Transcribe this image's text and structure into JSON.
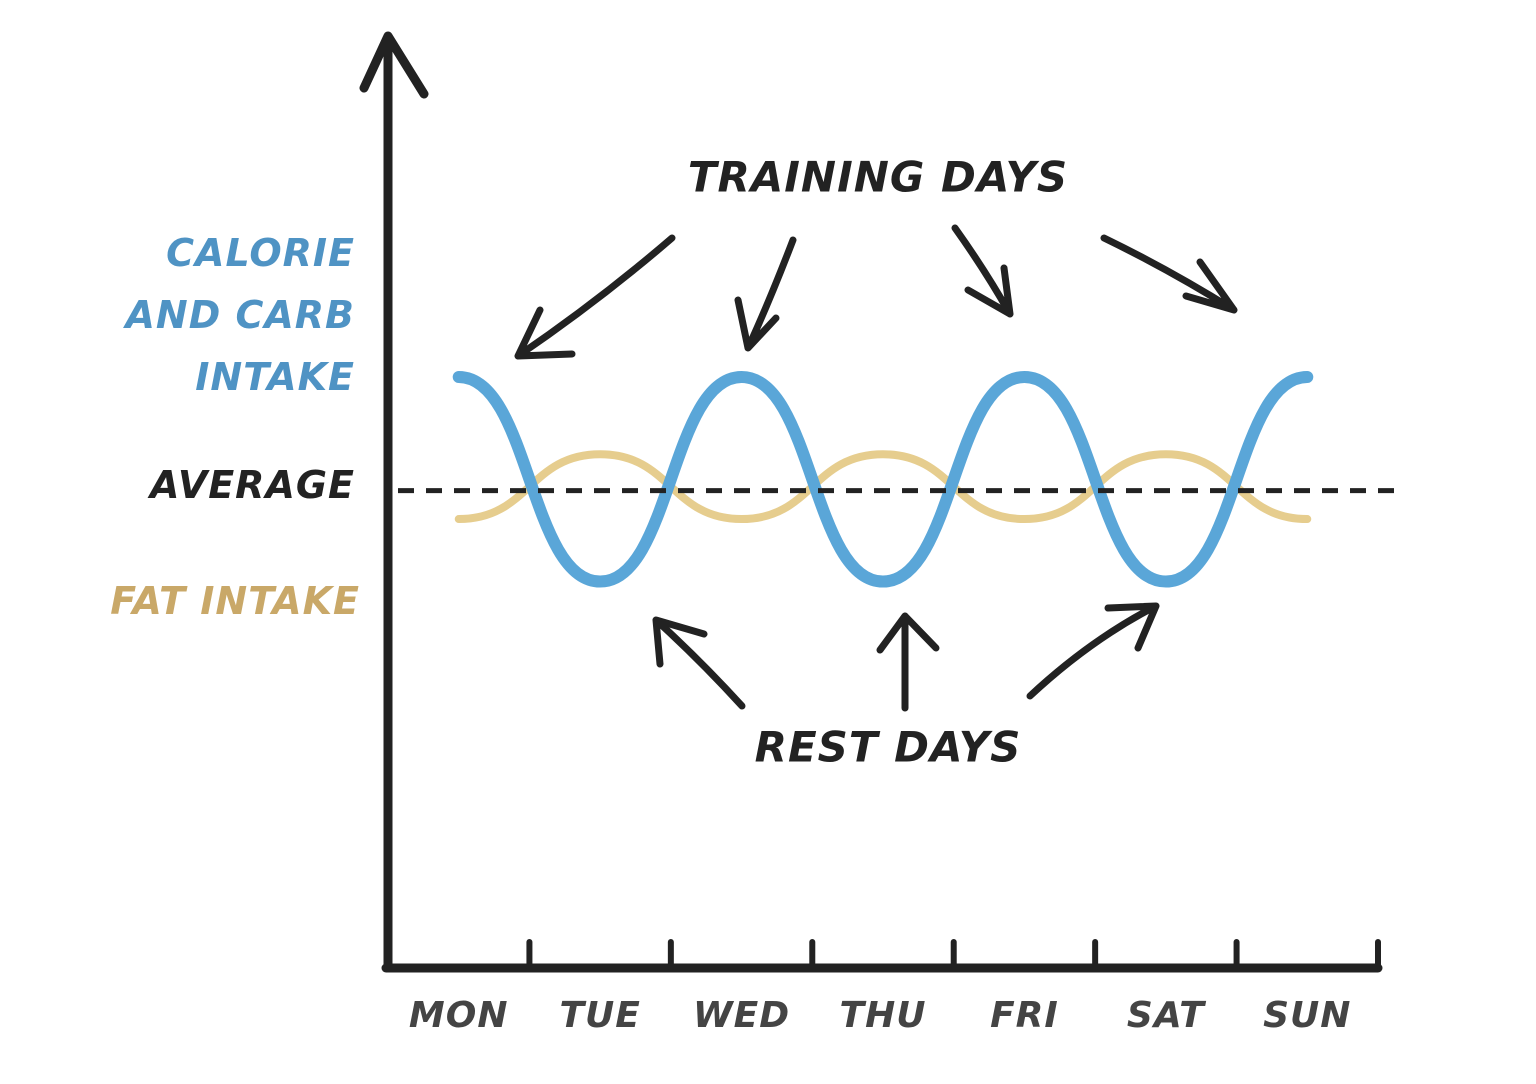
{
  "chart_data": {
    "type": "line",
    "categories": [
      "MON",
      "TUE",
      "WED",
      "THU",
      "FRI",
      "SAT",
      "SUN"
    ],
    "series": [
      {
        "name": "CALORIE AND CARB INTAKE",
        "color": "#5aa6d8",
        "label_color": "#4f93c4",
        "values": [
          1,
          -0.8,
          1,
          -0.8,
          1,
          -0.8,
          1
        ]
      },
      {
        "name": "FAT INTAKE",
        "color": "#e6cd8e",
        "label_color": "#c9a868",
        "values": [
          -0.25,
          0.32,
          -0.25,
          0.32,
          -0.25,
          0.32,
          -0.25
        ]
      }
    ],
    "average": {
      "value": 0,
      "label": "AVERAGE",
      "color": "#222"
    },
    "ylim": [
      -4.2,
      4
    ],
    "annotations": [
      "TRAINING DAYS",
      "REST DAYS"
    ]
  }
}
